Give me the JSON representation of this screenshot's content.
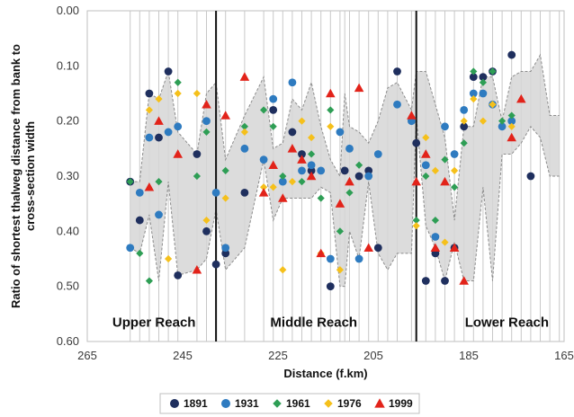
{
  "chart_data": {
    "type": "scatter",
    "xlabel": "Distance (f.km)",
    "ylabel": "Ratio of shortest thalweg distance from bank to cross-section width",
    "ylabel_lines": [
      "Ratio of shortest thalweg distance from bank to",
      "cross-section width"
    ],
    "xlim": [
      265,
      165
    ],
    "ylim": [
      0,
      0.6
    ],
    "y_inverted": true,
    "x_ticks": [
      "265",
      "245",
      "225",
      "205",
      "185",
      "165"
    ],
    "x_tick_values": [
      265,
      245,
      225,
      205,
      185,
      165
    ],
    "y_ticks": [
      "0.00",
      "0.10",
      "0.20",
      "0.30",
      "0.40",
      "0.50",
      "0.60"
    ],
    "y_tick_values": [
      0,
      0.1,
      0.2,
      0.3,
      0.4,
      0.5,
      0.6
    ],
    "grid": "vertical lines at cross-section locations",
    "cross_sections": [
      256,
      254,
      252,
      250,
      248,
      246,
      242,
      240,
      238,
      236,
      232,
      228,
      226,
      224,
      222,
      220,
      218,
      216,
      214,
      212,
      211,
      210,
      208,
      206,
      204,
      202,
      200,
      197,
      196,
      194,
      192,
      190,
      188,
      186,
      184,
      182,
      180,
      178,
      176,
      174,
      172,
      170,
      168,
      166
    ],
    "reach_boundaries": [
      238,
      196
    ],
    "reach_labels": [
      {
        "label": "Upper Reach",
        "x": 251,
        "y": 0.565
      },
      {
        "label": "Middle Reach",
        "x": 217.5,
        "y": 0.565
      },
      {
        "label": "Lower Reach",
        "x": 177,
        "y": 0.565
      }
    ],
    "envelope_upper": [
      [
        256,
        0.31
      ],
      [
        254,
        0.31
      ],
      [
        252,
        0.15
      ],
      [
        250,
        0.16
      ],
      [
        248,
        0.11
      ],
      [
        246,
        0.22
      ],
      [
        242,
        0.26
      ],
      [
        240,
        0.15
      ],
      [
        238,
        0.13
      ],
      [
        236,
        0.27
      ],
      [
        232,
        0.19
      ],
      [
        228,
        0.12
      ],
      [
        226,
        0.25
      ],
      [
        224,
        0.24
      ],
      [
        222,
        0.16
      ],
      [
        220,
        0.18
      ],
      [
        218,
        0.13
      ],
      [
        216,
        0.21
      ],
      [
        214,
        0.27
      ],
      [
        212,
        0.3
      ],
      [
        211,
        0.15
      ],
      [
        210,
        0.21
      ],
      [
        208,
        0.22
      ],
      [
        206,
        0.24
      ],
      [
        204,
        0.2
      ],
      [
        202,
        0.14
      ],
      [
        200,
        0.13
      ],
      [
        197,
        0.18
      ],
      [
        196,
        0.11
      ],
      [
        194,
        0.11
      ],
      [
        192,
        0.17
      ],
      [
        190,
        0.23
      ],
      [
        188,
        0.38
      ],
      [
        186,
        0.21
      ],
      [
        184,
        0.21
      ],
      [
        182,
        0.12
      ],
      [
        180,
        0.12
      ],
      [
        178,
        0.2
      ],
      [
        176,
        0.12
      ],
      [
        174,
        0.11
      ],
      [
        172,
        0.11
      ],
      [
        170,
        0.08
      ],
      [
        168,
        0.19
      ],
      [
        166,
        0.19
      ]
    ],
    "envelope_lower": [
      [
        256,
        0.43
      ],
      [
        254,
        0.44
      ],
      [
        252,
        0.37
      ],
      [
        250,
        0.49
      ],
      [
        248,
        0.31
      ],
      [
        246,
        0.48
      ],
      [
        242,
        0.47
      ],
      [
        240,
        0.45
      ],
      [
        238,
        0.36
      ],
      [
        236,
        0.47
      ],
      [
        232,
        0.43
      ],
      [
        228,
        0.27
      ],
      [
        226,
        0.38
      ],
      [
        224,
        0.34
      ],
      [
        222,
        0.34
      ],
      [
        220,
        0.34
      ],
      [
        218,
        0.34
      ],
      [
        216,
        0.32
      ],
      [
        214,
        0.33
      ],
      [
        212,
        0.5
      ],
      [
        211,
        0.5
      ],
      [
        210,
        0.4
      ],
      [
        208,
        0.45
      ],
      [
        206,
        0.31
      ],
      [
        204,
        0.44
      ],
      [
        202,
        0.47
      ],
      [
        200,
        0.44
      ],
      [
        197,
        0.44
      ],
      [
        196,
        0.19
      ],
      [
        194,
        0.39
      ],
      [
        192,
        0.43
      ],
      [
        190,
        0.49
      ],
      [
        188,
        0.42
      ],
      [
        186,
        0.49
      ],
      [
        184,
        0.49
      ],
      [
        182,
        0.32
      ],
      [
        180,
        0.49
      ],
      [
        178,
        0.26
      ],
      [
        176,
        0.26
      ],
      [
        174,
        0.24
      ],
      [
        172,
        0.21
      ],
      [
        170,
        0.23
      ],
      [
        168,
        0.3
      ],
      [
        166,
        0.3
      ]
    ],
    "series": [
      {
        "name": "1891",
        "marker": "circle",
        "color": "#1f2f5e",
        "points": [
          [
            256,
            0.31
          ],
          [
            254,
            0.38
          ],
          [
            252,
            0.15
          ],
          [
            250,
            0.23
          ],
          [
            248,
            0.11
          ],
          [
            246,
            0.48
          ],
          [
            242,
            0.26
          ],
          [
            240,
            0.4
          ],
          [
            238,
            0.46
          ],
          [
            236,
            0.44
          ],
          [
            232,
            0.33
          ],
          [
            226,
            0.18
          ],
          [
            222,
            0.22
          ],
          [
            220,
            0.26
          ],
          [
            218,
            0.29
          ],
          [
            214,
            0.5
          ],
          [
            211,
            0.29
          ],
          [
            208,
            0.3
          ],
          [
            206,
            0.29
          ],
          [
            204,
            0.43
          ],
          [
            200,
            0.11
          ],
          [
            196,
            0.24
          ],
          [
            194,
            0.49
          ],
          [
            192,
            0.44
          ],
          [
            190,
            0.49
          ],
          [
            188,
            0.43
          ],
          [
            186,
            0.21
          ],
          [
            184,
            0.12
          ],
          [
            182,
            0.12
          ],
          [
            180,
            0.11
          ],
          [
            176,
            0.08
          ],
          [
            172,
            0.3
          ]
        ]
      },
      {
        "name": "1931",
        "marker": "circle",
        "color": "#2e7bc0",
        "points": [
          [
            256,
            0.43
          ],
          [
            254,
            0.33
          ],
          [
            252,
            0.23
          ],
          [
            250,
            0.37
          ],
          [
            248,
            0.22
          ],
          [
            246,
            0.21
          ],
          [
            240,
            0.2
          ],
          [
            238,
            0.33
          ],
          [
            236,
            0.43
          ],
          [
            232,
            0.25
          ],
          [
            228,
            0.27
          ],
          [
            226,
            0.16
          ],
          [
            224,
            0.31
          ],
          [
            222,
            0.13
          ],
          [
            220,
            0.29
          ],
          [
            218,
            0.28
          ],
          [
            216,
            0.29
          ],
          [
            214,
            0.45
          ],
          [
            212,
            0.22
          ],
          [
            210,
            0.25
          ],
          [
            208,
            0.45
          ],
          [
            206,
            0.3
          ],
          [
            204,
            0.26
          ],
          [
            200,
            0.17
          ],
          [
            197,
            0.2
          ],
          [
            194,
            0.28
          ],
          [
            192,
            0.41
          ],
          [
            190,
            0.21
          ],
          [
            188,
            0.26
          ],
          [
            186,
            0.18
          ],
          [
            184,
            0.15
          ],
          [
            182,
            0.15
          ],
          [
            180,
            0.17
          ],
          [
            178,
            0.21
          ],
          [
            176,
            0.2
          ]
        ]
      },
      {
        "name": "1961",
        "marker": "diamond",
        "color": "#2e9e55",
        "points": [
          [
            256,
            0.31
          ],
          [
            254,
            0.44
          ],
          [
            252,
            0.49
          ],
          [
            250,
            0.31
          ],
          [
            246,
            0.13
          ],
          [
            242,
            0.3
          ],
          [
            240,
            0.22
          ],
          [
            236,
            0.29
          ],
          [
            232,
            0.21
          ],
          [
            228,
            0.18
          ],
          [
            226,
            0.21
          ],
          [
            224,
            0.3
          ],
          [
            220,
            0.31
          ],
          [
            218,
            0.26
          ],
          [
            216,
            0.34
          ],
          [
            214,
            0.18
          ],
          [
            212,
            0.4
          ],
          [
            210,
            0.33
          ],
          [
            208,
            0.28
          ],
          [
            196,
            0.38
          ],
          [
            194,
            0.3
          ],
          [
            192,
            0.38
          ],
          [
            190,
            0.27
          ],
          [
            188,
            0.32
          ],
          [
            186,
            0.24
          ],
          [
            184,
            0.11
          ],
          [
            182,
            0.13
          ],
          [
            180,
            0.11
          ],
          [
            178,
            0.2
          ],
          [
            176,
            0.19
          ]
        ]
      },
      {
        "name": "1976",
        "marker": "diamond",
        "color": "#f5c01b",
        "points": [
          [
            252,
            0.18
          ],
          [
            250,
            0.16
          ],
          [
            248,
            0.45
          ],
          [
            246,
            0.15
          ],
          [
            242,
            0.15
          ],
          [
            240,
            0.38
          ],
          [
            236,
            0.34
          ],
          [
            232,
            0.22
          ],
          [
            228,
            0.32
          ],
          [
            226,
            0.32
          ],
          [
            224,
            0.47
          ],
          [
            222,
            0.31
          ],
          [
            220,
            0.2
          ],
          [
            218,
            0.23
          ],
          [
            216,
            0.44
          ],
          [
            214,
            0.21
          ],
          [
            212,
            0.47
          ],
          [
            196,
            0.39
          ],
          [
            194,
            0.23
          ],
          [
            192,
            0.29
          ],
          [
            190,
            0.42
          ],
          [
            188,
            0.29
          ],
          [
            186,
            0.2
          ],
          [
            184,
            0.16
          ],
          [
            182,
            0.2
          ],
          [
            180,
            0.17
          ],
          [
            176,
            0.21
          ]
        ]
      },
      {
        "name": "1999",
        "marker": "triangle",
        "color": "#e2231a",
        "points": [
          [
            252,
            0.32
          ],
          [
            250,
            0.2
          ],
          [
            246,
            0.26
          ],
          [
            242,
            0.47
          ],
          [
            240,
            0.17
          ],
          [
            236,
            0.19
          ],
          [
            232,
            0.12
          ],
          [
            228,
            0.33
          ],
          [
            226,
            0.28
          ],
          [
            224,
            0.34
          ],
          [
            222,
            0.25
          ],
          [
            220,
            0.27
          ],
          [
            218,
            0.3
          ],
          [
            216,
            0.44
          ],
          [
            214,
            0.15
          ],
          [
            212,
            0.35
          ],
          [
            210,
            0.31
          ],
          [
            208,
            0.14
          ],
          [
            206,
            0.43
          ],
          [
            197,
            0.19
          ],
          [
            196,
            0.31
          ],
          [
            194,
            0.26
          ],
          [
            192,
            0.43
          ],
          [
            190,
            0.31
          ],
          [
            188,
            0.43
          ],
          [
            186,
            0.49
          ],
          [
            176,
            0.23
          ],
          [
            174,
            0.16
          ]
        ]
      }
    ],
    "legend": {
      "position": "bottom",
      "entries": [
        "1891",
        "1931",
        "1961",
        "1976",
        "1999"
      ]
    }
  },
  "colors": {
    "envelope_fill": "#d6d6d6",
    "envelope_stroke": "#8c8c8c",
    "gridline": "#c8c8c8",
    "boundary": "#111111",
    "frame": "#bfbfbf"
  }
}
